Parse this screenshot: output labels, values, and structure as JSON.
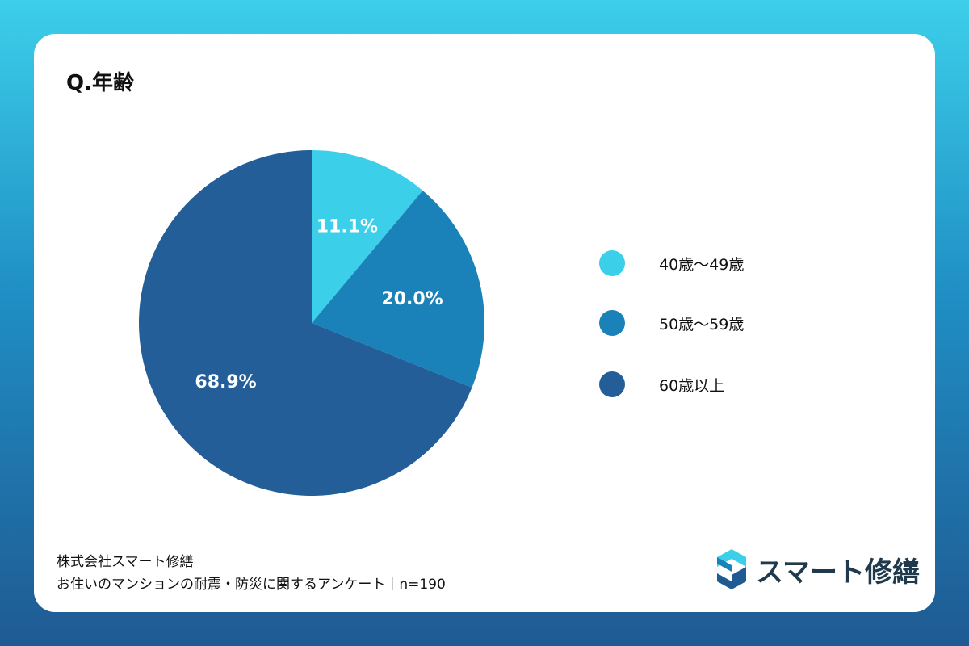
{
  "title": "Q.年齢",
  "colors": {
    "c1": "#3ccfea",
    "c2": "#1a82b8",
    "c3": "#235e98"
  },
  "legend": [
    {
      "label": "40歳〜49歳",
      "color": "#3ccfea"
    },
    {
      "label": "50歳〜59歳",
      "color": "#1a82b8"
    },
    {
      "label": "60歳以上",
      "color": "#235e98"
    }
  ],
  "chart_data": {
    "type": "pie",
    "categories": [
      "40歳〜49歳",
      "50歳〜59歳",
      "60歳以上"
    ],
    "values": [
      11.1,
      20.0,
      68.9
    ],
    "labels": [
      "11.1%",
      "20.0%",
      "68.9%"
    ],
    "title": "Q.年齢",
    "legend_position": "right"
  },
  "footer": {
    "company": "株式会社スマート修繕",
    "survey": "お住いのマンションの耐震・防災に関するアンケート｜n=190"
  },
  "logo": {
    "text": "スマート修繕",
    "icon": "s-logo-icon"
  }
}
